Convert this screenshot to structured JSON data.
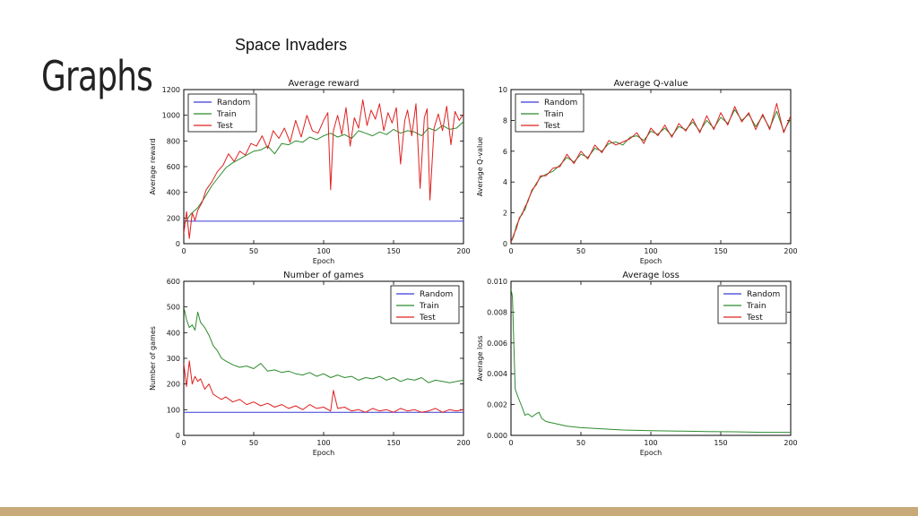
{
  "slide": {
    "title": "Graphs",
    "subtitle": "Space Invaders",
    "footer_color": "#c8a97a"
  },
  "legend_labels": [
    "Random",
    "Train",
    "Test"
  ],
  "colors": {
    "Random": "#3b3bd6",
    "Train": "#2e8b2e",
    "Test": "#e02020"
  },
  "chart_data": [
    {
      "type": "line",
      "title": "Average reward",
      "xlabel": "Epoch",
      "ylabel": "Average reward",
      "xlim": [
        0,
        200
      ],
      "ylim": [
        0,
        1200
      ],
      "xticks": [
        0,
        50,
        100,
        150,
        200
      ],
      "yticks": [
        0,
        200,
        400,
        600,
        800,
        1000,
        1200
      ],
      "tick_labels_x": [
        "0",
        "50",
        "100",
        "150",
        "200"
      ],
      "tick_labels_y": [
        "0",
        "200",
        "400",
        "600",
        "800",
        "1000",
        "1200"
      ],
      "legend_position": "top-left",
      "series": [
        {
          "name": "Random",
          "x": [
            0,
            200
          ],
          "y": [
            175,
            175
          ]
        },
        {
          "name": "Train",
          "x": [
            0,
            5,
            10,
            15,
            20,
            25,
            30,
            35,
            40,
            45,
            50,
            55,
            60,
            65,
            70,
            75,
            80,
            85,
            90,
            95,
            100,
            105,
            110,
            115,
            120,
            125,
            130,
            135,
            140,
            145,
            150,
            155,
            160,
            165,
            170,
            175,
            180,
            185,
            190,
            195,
            200
          ],
          "y": [
            150,
            230,
            280,
            360,
            450,
            520,
            590,
            630,
            660,
            690,
            720,
            730,
            760,
            700,
            780,
            770,
            800,
            790,
            830,
            810,
            840,
            860,
            830,
            850,
            820,
            880,
            860,
            840,
            870,
            850,
            890,
            860,
            880,
            870,
            840,
            900,
            880,
            920,
            890,
            900,
            950
          ]
        },
        {
          "name": "Test",
          "x": [
            0,
            2,
            4,
            6,
            8,
            10,
            13,
            16,
            20,
            24,
            28,
            32,
            36,
            40,
            44,
            48,
            52,
            56,
            60,
            64,
            68,
            72,
            76,
            80,
            84,
            88,
            92,
            96,
            100,
            103,
            105,
            107,
            110,
            113,
            116,
            119,
            122,
            125,
            128,
            131,
            134,
            137,
            140,
            143,
            146,
            149,
            152,
            155,
            158,
            160,
            163,
            166,
            169,
            172,
            174,
            176,
            179,
            182,
            185,
            188,
            191,
            194,
            197,
            200
          ],
          "y": [
            80,
            250,
            40,
            240,
            180,
            260,
            320,
            420,
            480,
            560,
            610,
            700,
            640,
            720,
            690,
            780,
            760,
            840,
            740,
            880,
            820,
            900,
            790,
            960,
            830,
            1000,
            880,
            860,
            960,
            1020,
            420,
            880,
            1000,
            850,
            1060,
            760,
            980,
            900,
            1120,
            920,
            1040,
            970,
            1090,
            880,
            1020,
            940,
            1060,
            620,
            960,
            1040,
            840,
            1090,
            430,
            980,
            1050,
            340,
            900,
            1010,
            880,
            1070,
            770,
            1030,
            960,
            1010
          ]
        }
      ]
    },
    {
      "type": "line",
      "title": "Average Q-value",
      "xlabel": "Epoch",
      "ylabel": "Average Q-value",
      "xlim": [
        0,
        200
      ],
      "ylim": [
        0,
        10
      ],
      "xticks": [
        0,
        50,
        100,
        150,
        200
      ],
      "yticks": [
        0,
        2,
        4,
        6,
        8,
        10
      ],
      "tick_labels_x": [
        "0",
        "50",
        "100",
        "150",
        "200"
      ],
      "tick_labels_y": [
        "0",
        "2",
        "4",
        "6",
        "8",
        "10"
      ],
      "legend_position": "top-left",
      "series": [
        {
          "name": "Random",
          "x": [],
          "y": []
        },
        {
          "name": "Train",
          "x": [
            0,
            2,
            4,
            6,
            8,
            10,
            12,
            15,
            18,
            21,
            25,
            30,
            35,
            40,
            45,
            50,
            55,
            60,
            65,
            70,
            75,
            80,
            85,
            90,
            95,
            100,
            105,
            110,
            115,
            120,
            125,
            130,
            135,
            140,
            145,
            150,
            155,
            160,
            165,
            170,
            175,
            180,
            185,
            190,
            195,
            200
          ],
          "y": [
            0.1,
            0.5,
            1.2,
            1.6,
            2.0,
            2.2,
            2.8,
            3.4,
            3.9,
            4.3,
            4.5,
            4.7,
            5.1,
            5.6,
            5.3,
            5.8,
            5.6,
            6.2,
            6.0,
            6.5,
            6.6,
            6.4,
            6.9,
            7.0,
            6.7,
            7.3,
            7.1,
            7.5,
            7.0,
            7.6,
            7.4,
            7.9,
            7.3,
            8.0,
            7.5,
            8.2,
            7.8,
            8.7,
            8.0,
            8.4,
            7.6,
            8.3,
            7.5,
            8.6,
            7.3,
            8.1
          ]
        },
        {
          "name": "Test",
          "x": [
            0,
            2,
            4,
            6,
            8,
            10,
            12,
            15,
            18,
            21,
            25,
            30,
            35,
            40,
            45,
            50,
            55,
            60,
            65,
            70,
            75,
            80,
            85,
            90,
            95,
            100,
            105,
            110,
            115,
            120,
            125,
            130,
            135,
            140,
            145,
            150,
            155,
            160,
            165,
            170,
            175,
            180,
            185,
            190,
            195,
            200
          ],
          "y": [
            0.1,
            0.6,
            1.0,
            1.7,
            1.9,
            2.4,
            2.7,
            3.5,
            3.8,
            4.4,
            4.4,
            4.9,
            5.0,
            5.8,
            5.2,
            6.0,
            5.5,
            6.4,
            5.9,
            6.7,
            6.4,
            6.6,
            6.8,
            7.2,
            6.5,
            7.5,
            7.0,
            7.7,
            6.9,
            7.8,
            7.3,
            8.1,
            7.2,
            8.3,
            7.4,
            8.5,
            7.7,
            8.9,
            7.9,
            8.5,
            7.4,
            8.4,
            7.4,
            9.1,
            7.2,
            8.3
          ]
        }
      ]
    },
    {
      "type": "line",
      "title": "Number of games",
      "xlabel": "Epoch",
      "ylabel": "Number of games",
      "xlim": [
        0,
        200
      ],
      "ylim": [
        0,
        600
      ],
      "xticks": [
        0,
        50,
        100,
        150,
        200
      ],
      "yticks": [
        0,
        100,
        200,
        300,
        400,
        500,
        600
      ],
      "tick_labels_x": [
        "0",
        "50",
        "100",
        "150",
        "200"
      ],
      "tick_labels_y": [
        "0",
        "100",
        "200",
        "300",
        "400",
        "500",
        "600"
      ],
      "legend_position": "top-right",
      "series": [
        {
          "name": "Random",
          "x": [
            0,
            200
          ],
          "y": [
            90,
            90
          ]
        },
        {
          "name": "Train",
          "x": [
            0,
            2,
            4,
            6,
            8,
            10,
            12,
            15,
            18,
            21,
            24,
            27,
            30,
            35,
            40,
            45,
            50,
            55,
            60,
            65,
            70,
            75,
            80,
            85,
            90,
            95,
            100,
            105,
            110,
            115,
            120,
            125,
            130,
            135,
            140,
            145,
            150,
            155,
            160,
            165,
            170,
            175,
            180,
            185,
            190,
            195,
            200
          ],
          "y": [
            500,
            450,
            420,
            430,
            410,
            480,
            440,
            420,
            390,
            350,
            330,
            300,
            290,
            275,
            265,
            270,
            260,
            280,
            250,
            255,
            245,
            250,
            240,
            235,
            245,
            230,
            240,
            225,
            235,
            225,
            230,
            215,
            225,
            220,
            230,
            215,
            225,
            210,
            220,
            215,
            225,
            205,
            215,
            210,
            205,
            210,
            215
          ]
        },
        {
          "name": "Test",
          "x": [
            0,
            2,
            4,
            6,
            8,
            10,
            12,
            15,
            18,
            21,
            24,
            27,
            30,
            35,
            40,
            45,
            50,
            55,
            60,
            65,
            70,
            75,
            80,
            85,
            90,
            95,
            100,
            105,
            107,
            110,
            115,
            120,
            125,
            130,
            135,
            140,
            145,
            150,
            155,
            160,
            165,
            170,
            175,
            180,
            185,
            190,
            195,
            200
          ],
          "y": [
            280,
            190,
            290,
            200,
            230,
            210,
            220,
            180,
            200,
            160,
            150,
            140,
            150,
            130,
            140,
            120,
            130,
            115,
            125,
            110,
            120,
            105,
            115,
            100,
            120,
            105,
            110,
            95,
            175,
            105,
            110,
            95,
            100,
            90,
            105,
            95,
            100,
            90,
            105,
            95,
            100,
            90,
            95,
            105,
            90,
            100,
            95,
            100
          ]
        }
      ]
    },
    {
      "type": "line",
      "title": "Average loss",
      "xlabel": "Epoch",
      "ylabel": "Average loss",
      "xlim": [
        0,
        200
      ],
      "ylim": [
        0.0,
        0.01
      ],
      "xticks": [
        0,
        50,
        100,
        150,
        200
      ],
      "yticks": [
        0.0,
        0.002,
        0.004,
        0.006,
        0.008,
        0.01
      ],
      "tick_labels_x": [
        "0",
        "50",
        "100",
        "150",
        "200"
      ],
      "tick_labels_y": [
        "0.000",
        "0.002",
        "0.004",
        "0.006",
        "0.008",
        "0.010"
      ],
      "legend_position": "top-right",
      "series": [
        {
          "name": "Random",
          "x": [],
          "y": []
        },
        {
          "name": "Train",
          "x": [
            0,
            1,
            2,
            3,
            5,
            8,
            10,
            12,
            15,
            18,
            20,
            22,
            25,
            30,
            35,
            40,
            50,
            60,
            70,
            80,
            100,
            120,
            140,
            160,
            180,
            200
          ],
          "y": [
            0.0095,
            0.009,
            0.006,
            0.003,
            0.0025,
            0.0018,
            0.0013,
            0.0014,
            0.0012,
            0.0014,
            0.0015,
            0.0011,
            0.0009,
            0.0008,
            0.0007,
            0.0006,
            0.0005,
            0.00045,
            0.0004,
            0.00035,
            0.0003,
            0.00028,
            0.00025,
            0.00023,
            0.0002,
            0.0002
          ]
        },
        {
          "name": "Test",
          "x": [],
          "y": []
        }
      ]
    }
  ]
}
